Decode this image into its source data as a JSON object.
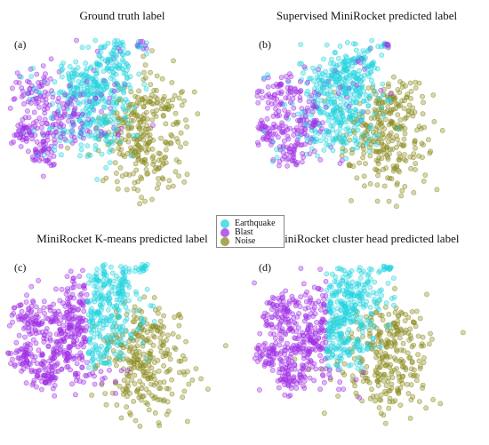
{
  "legend": {
    "items": [
      {
        "label": "Earthquake",
        "color": "#22d3e0"
      },
      {
        "label": "Blast",
        "color": "#a02ee6"
      },
      {
        "label": "Noise",
        "color": "#8a8a1e"
      }
    ]
  },
  "chart_data": [
    {
      "type": "scatter",
      "title": "Ground truth label",
      "panel_label": "(a)",
      "labeling": "ground-truth",
      "series_names": [
        "Earthquake",
        "Blast",
        "Noise"
      ],
      "axes": "hidden",
      "grid": false
    },
    {
      "type": "scatter",
      "title": "Supervised MiniRocket predicted label",
      "panel_label": "(b)",
      "labeling": "supervised",
      "series_names": [
        "Earthquake",
        "Blast",
        "Noise"
      ],
      "axes": "hidden",
      "grid": false
    },
    {
      "type": "scatter",
      "title": "MiniRocket K-means predicted label",
      "panel_label": "(c)",
      "labeling": "kmeans",
      "series_names": [
        "Earthquake",
        "Blast",
        "Noise"
      ],
      "axes": "hidden",
      "grid": false
    },
    {
      "type": "scatter",
      "title": "MiniRocket cluster head predicted label",
      "panel_label": "(d)",
      "labeling": "cluster-head",
      "series_names": [
        "Earthquake",
        "Blast",
        "Noise"
      ],
      "axes": "hidden",
      "grid": false
    }
  ]
}
